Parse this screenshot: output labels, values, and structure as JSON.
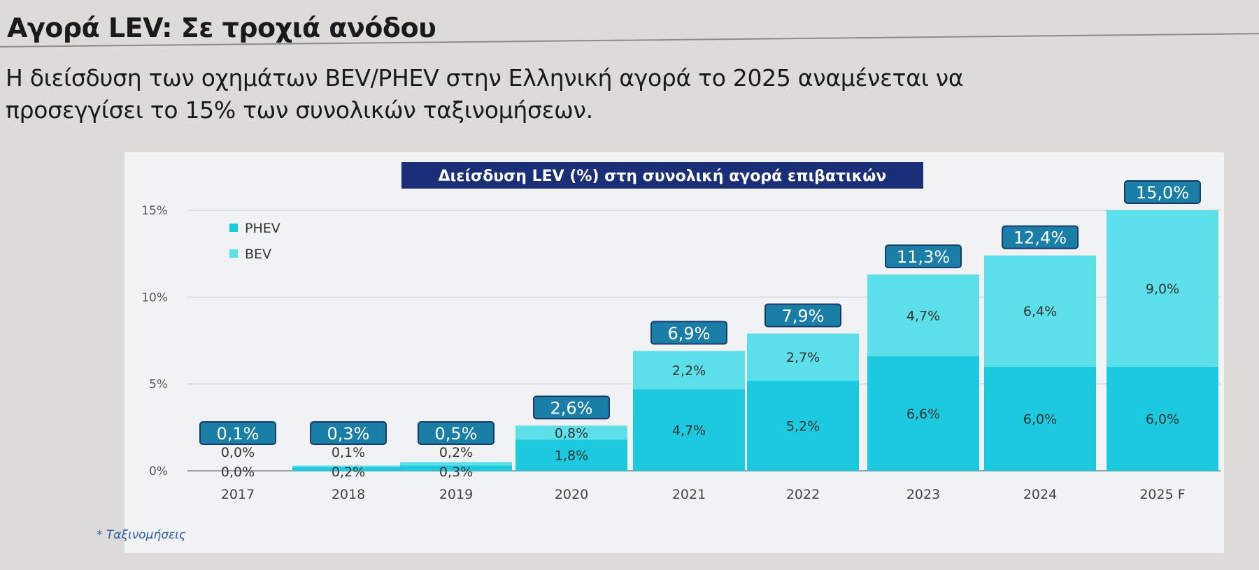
{
  "header": {
    "title": "Αγορά LEV: Σε τροχιά ανόδου",
    "subtitle_line1": "Η διείσδυση των οχημάτων BEV/PHEV στην Ελληνική αγορά το 2025 αναμένεται να",
    "subtitle_line2": "προσεγγίσει το 15% των συνολικών ταξινομήσεων."
  },
  "footnote": "* Ταξινομήσεις",
  "colors": {
    "phev": "#1cc9df",
    "bev": "#5cdfe9",
    "total_box": "#1b7ea6",
    "title_box": "#1b2f78"
  },
  "chart_data": {
    "type": "bar",
    "stacked": true,
    "title": "Διείσδυση LEV (%) στη συνολική αγορά επιβατικών",
    "categories": [
      "2017",
      "2018",
      "2019",
      "2020",
      "2021",
      "2022",
      "2023",
      "2024",
      "2025 F"
    ],
    "series": [
      {
        "name": "PHEV",
        "values": [
          0.0,
          0.2,
          0.3,
          1.8,
          4.7,
          5.2,
          6.6,
          6.0,
          6.0
        ],
        "labels": [
          "0,0%",
          "0,2%",
          "0,3%",
          "1,8%",
          "4,7%",
          "5,2%",
          "6,6%",
          "6,0%",
          "6,0%"
        ]
      },
      {
        "name": "BEV",
        "values": [
          0.0,
          0.1,
          0.2,
          0.8,
          2.2,
          2.7,
          4.7,
          6.4,
          9.0
        ],
        "labels": [
          "0,0%",
          "0,1%",
          "0,2%",
          "0,8%",
          "2,2%",
          "2,7%",
          "4,7%",
          "6,4%",
          "9,0%"
        ]
      }
    ],
    "totals": [
      0.1,
      0.3,
      0.5,
      2.6,
      6.9,
      7.9,
      11.3,
      12.4,
      15.0
    ],
    "total_labels": [
      "0,1%",
      "0,3%",
      "0,5%",
      "2,6%",
      "6,9%",
      "7,9%",
      "11,3%",
      "12,4%",
      "15,0%"
    ],
    "yticks": [
      0,
      5,
      10,
      15
    ],
    "ytick_labels": [
      "0%",
      "5%",
      "10%",
      "15%"
    ],
    "ylim": [
      0,
      15
    ],
    "legend": [
      "PHEV",
      "BEV"
    ],
    "legend_position": "top-left",
    "grid": true
  }
}
